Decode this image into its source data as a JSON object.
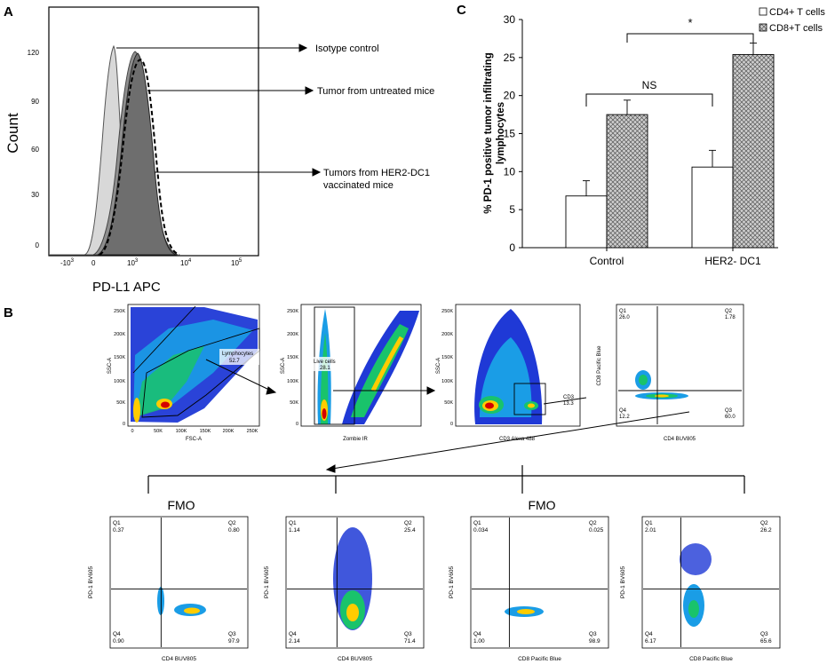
{
  "panels": {
    "A": {
      "label": "A",
      "ylabel": "Count",
      "xlabel": "PD-L1 APC",
      "yticks": [
        "0",
        "30",
        "60",
        "90",
        "120"
      ],
      "xticks": [
        "-10",
        "0",
        "10",
        "10",
        "10"
      ],
      "xtick_exps": [
        "3",
        "3",
        "4",
        "5"
      ],
      "annotations": [
        "Isotype control",
        "Tumor from untreated mice",
        "Tumors from HER2-DC1",
        "vaccinated mice"
      ]
    },
    "B": {
      "label": "B",
      "plots": [
        {
          "x": "FSC-A",
          "y": "SSC-A",
          "gate": "Lymphocytes",
          "gate_value": "52.7",
          "xticks": [
            "0",
            "50K",
            "100K",
            "150K",
            "200K",
            "250K"
          ],
          "yticks": [
            "0",
            "50K",
            "100K",
            "150K",
            "200K",
            "250K"
          ]
        },
        {
          "x": "Zombie IR",
          "y": "SSC-A",
          "gate": "Live cells",
          "gate_value": "28.1",
          "yticks": [
            "0",
            "50K",
            "100K",
            "150K",
            "200K",
            "250K"
          ]
        },
        {
          "x": "CD3 Alexa 488",
          "y": "SSC-A",
          "gate": "CD3",
          "gate_value": "13.3",
          "yticks": [
            "0",
            "50K",
            "100K",
            "150K",
            "200K",
            "250K"
          ]
        },
        {
          "x": "CD4 BUV805",
          "y": "CD8 Pacific Blue",
          "q1": "26.0",
          "q2": "1.78",
          "q3": "60.0",
          "q4": "12.2"
        }
      ],
      "quads": [
        {
          "title": "FMO",
          "x": "CD4 BUV805",
          "y": "PD-1 BV605",
          "q1": "0.37",
          "q2": "0.80",
          "q3": "97.9",
          "q4": "0.90"
        },
        {
          "title": "",
          "x": "CD4 BUV805",
          "y": "PD-1 BV605",
          "q1": "1.14",
          "q2": "25.4",
          "q3": "71.4",
          "q4": "2.14"
        },
        {
          "title": "FMO",
          "x": "CD8 Pacific Blue",
          "y": "PD-1 BV605",
          "q1": "0.034",
          "q2": "0.025",
          "q3": "98.9",
          "q4": "1.00"
        },
        {
          "title": "",
          "x": "CD8 Pacific Blue",
          "y": "PD-1 BV605",
          "q1": "2.01",
          "q2": "26.2",
          "q3": "65.6",
          "q4": "6.17"
        }
      ],
      "quadrant_labels": [
        "Q1",
        "Q2",
        "Q3",
        "Q4"
      ]
    },
    "C": {
      "label": "C"
    }
  },
  "colors": {
    "cd4_fill": "#ffffff",
    "cd8_fill": "#bdbdbd",
    "hist_light": "#cfcfcf",
    "hist_mid": "#9a9a9a",
    "hist_dark": "#6a6a6a"
  },
  "chart_data": {
    "type": "bar",
    "title": "",
    "categories": [
      "Control",
      "HER2- DC1"
    ],
    "series": [
      {
        "name": "CD4+ T cells",
        "values": [
          6.8,
          10.6
        ],
        "errors": [
          2.0,
          2.2
        ]
      },
      {
        "name": "CD8+T cells",
        "values": [
          17.5,
          25.4
        ],
        "errors": [
          1.9,
          1.5
        ]
      }
    ],
    "xlabel": "",
    "ylabel": "% PD-1 positive tumor infiltrating lymphocytes",
    "ylim": [
      0,
      30
    ],
    "yticks": [
      0,
      5,
      10,
      15,
      20,
      25,
      30
    ],
    "significance": [
      {
        "label": "NS"
      },
      {
        "label": "*"
      }
    ],
    "legend": "top-right"
  }
}
